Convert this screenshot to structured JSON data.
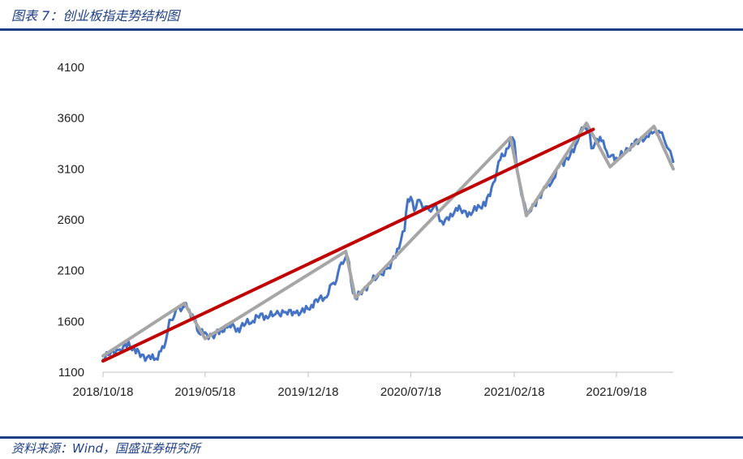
{
  "figure": {
    "title": "图表 7：创业板指走势结构图",
    "source": "资料来源：Wind，国盛证券研究所"
  },
  "chart_data": {
    "type": "line",
    "ylim": [
      1100,
      4100
    ],
    "yticks": [
      1100,
      1600,
      2100,
      2600,
      3100,
      3600,
      4100
    ],
    "xlim": [
      "2018-10-18",
      "2022-01-14"
    ],
    "xtick_labels": [
      {
        "date": "2018-10-18",
        "label": "2018/10/18"
      },
      {
        "date": "2019-05-18",
        "label": "2019/05/18"
      },
      {
        "date": "2019-12-18",
        "label": "2019/12/18"
      },
      {
        "date": "2020-07-18",
        "label": "2020/07/18"
      },
      {
        "date": "2021-02-18",
        "label": "2021/02/18"
      },
      {
        "date": "2021-09-18",
        "label": "2021/09/18"
      }
    ],
    "grid": false,
    "legend": "none",
    "series": [
      {
        "color": "#4472c4",
        "points": [
          [
            "2018-10-18",
            1240
          ],
          [
            "2018-11-05",
            1290
          ],
          [
            "2018-11-25",
            1330
          ],
          [
            "2018-12-10",
            1375
          ],
          [
            "2018-12-25",
            1310
          ],
          [
            "2019-01-10",
            1255
          ],
          [
            "2019-01-25",
            1235
          ],
          [
            "2019-02-05",
            1240
          ],
          [
            "2019-02-15",
            1290
          ],
          [
            "2019-02-25",
            1420
          ],
          [
            "2019-03-05",
            1590
          ],
          [
            "2019-03-15",
            1680
          ],
          [
            "2019-03-25",
            1720
          ],
          [
            "2019-04-05",
            1760
          ],
          [
            "2019-04-15",
            1710
          ],
          [
            "2019-04-25",
            1620
          ],
          [
            "2019-05-05",
            1500
          ],
          [
            "2019-05-18",
            1470
          ],
          [
            "2019-06-05",
            1460
          ],
          [
            "2019-06-20",
            1510
          ],
          [
            "2019-07-10",
            1560
          ],
          [
            "2019-07-25",
            1520
          ],
          [
            "2019-08-10",
            1580
          ],
          [
            "2019-08-25",
            1610
          ],
          [
            "2019-09-10",
            1660
          ],
          [
            "2019-09-25",
            1650
          ],
          [
            "2019-10-15",
            1680
          ],
          [
            "2019-11-05",
            1690
          ],
          [
            "2019-11-25",
            1690
          ],
          [
            "2019-12-10",
            1700
          ],
          [
            "2019-12-25",
            1760
          ],
          [
            "2020-01-10",
            1820
          ],
          [
            "2020-01-25",
            1850
          ],
          [
            "2020-02-05",
            1950
          ],
          [
            "2020-02-15",
            2030
          ],
          [
            "2020-02-25",
            2160
          ],
          [
            "2020-03-05",
            2250
          ],
          [
            "2020-03-12",
            2170
          ],
          [
            "2020-03-20",
            1880
          ],
          [
            "2020-03-25",
            1830
          ],
          [
            "2020-04-10",
            1900
          ],
          [
            "2020-04-25",
            1990
          ],
          [
            "2020-05-15",
            2060
          ],
          [
            "2020-06-05",
            2140
          ],
          [
            "2020-06-20",
            2300
          ],
          [
            "2020-07-05",
            2500
          ],
          [
            "2020-07-12",
            2800
          ],
          [
            "2020-07-18",
            2820
          ],
          [
            "2020-07-25",
            2700
          ],
          [
            "2020-08-05",
            2780
          ],
          [
            "2020-08-15",
            2740
          ],
          [
            "2020-08-25",
            2680
          ],
          [
            "2020-09-05",
            2750
          ],
          [
            "2020-09-20",
            2580
          ],
          [
            "2020-10-05",
            2600
          ],
          [
            "2020-10-20",
            2720
          ],
          [
            "2020-11-05",
            2680
          ],
          [
            "2020-11-20",
            2660
          ],
          [
            "2020-12-05",
            2730
          ],
          [
            "2020-12-20",
            2750
          ],
          [
            "2021-01-05",
            2950
          ],
          [
            "2021-01-20",
            3200
          ],
          [
            "2021-02-05",
            3300
          ],
          [
            "2021-02-10",
            3400
          ],
          [
            "2021-02-18",
            3380
          ],
          [
            "2021-02-25",
            3050
          ],
          [
            "2021-03-05",
            2850
          ],
          [
            "2021-03-15",
            2670
          ],
          [
            "2021-03-25",
            2700
          ],
          [
            "2021-04-10",
            2820
          ],
          [
            "2021-04-25",
            2920
          ],
          [
            "2021-05-10",
            3000
          ],
          [
            "2021-05-25",
            3150
          ],
          [
            "2021-06-10",
            3200
          ],
          [
            "2021-06-25",
            3320
          ],
          [
            "2021-07-05",
            3480
          ],
          [
            "2021-07-15",
            3500
          ],
          [
            "2021-07-22",
            3520
          ],
          [
            "2021-07-28",
            3300
          ],
          [
            "2021-08-05",
            3360
          ],
          [
            "2021-08-15",
            3420
          ],
          [
            "2021-08-25",
            3300
          ],
          [
            "2021-09-05",
            3230
          ],
          [
            "2021-09-18",
            3200
          ],
          [
            "2021-10-05",
            3260
          ],
          [
            "2021-10-20",
            3340
          ],
          [
            "2021-11-05",
            3380
          ],
          [
            "2021-11-20",
            3420
          ],
          [
            "2021-12-05",
            3460
          ],
          [
            "2021-12-15",
            3480
          ],
          [
            "2021-12-25",
            3400
          ],
          [
            "2022-01-05",
            3300
          ],
          [
            "2022-01-14",
            3170
          ]
        ]
      },
      {
        "color": "#a6a6a6",
        "points": [
          [
            "2018-10-18",
            1260
          ],
          [
            "2019-04-05",
            1780
          ],
          [
            "2019-05-18",
            1430
          ],
          [
            "2020-03-05",
            2290
          ],
          [
            "2020-03-25",
            1830
          ],
          [
            "2021-02-10",
            3410
          ],
          [
            "2021-03-15",
            2640
          ],
          [
            "2021-07-18",
            3550
          ],
          [
            "2021-09-05",
            3120
          ],
          [
            "2021-12-05",
            3520
          ],
          [
            "2022-01-14",
            3100
          ]
        ]
      },
      {
        "color": "#c00000",
        "points": [
          [
            "2018-10-18",
            1210
          ],
          [
            "2021-08-01",
            3490
          ]
        ]
      }
    ]
  }
}
